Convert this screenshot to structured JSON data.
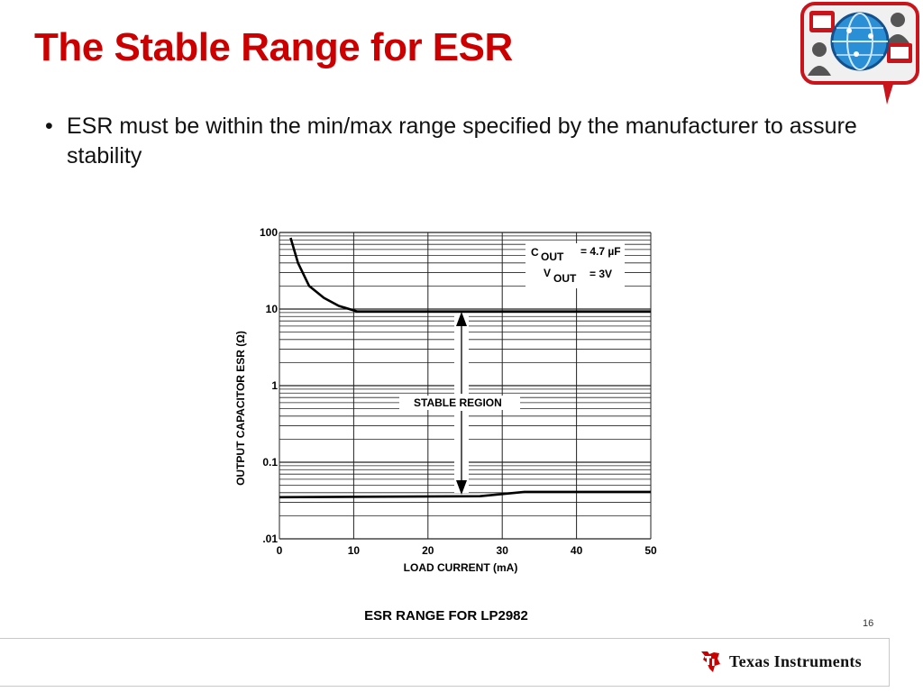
{
  "slide": {
    "title": "The Stable Range for ESR",
    "bullets": [
      "ESR must be within the min/max range specified by the manufacturer to assure stability"
    ],
    "caption": "ESR RANGE FOR LP2982",
    "page_number": "16",
    "brand": {
      "name_line": "Texas Instruments",
      "accent_color": "#cc0000"
    }
  },
  "chart_data": {
    "type": "line",
    "xlabel": "LOAD CURRENT (mA)",
    "ylabel": "OUTPUT CAPACITOR ESR (",
    "ylabel_symbol": "Ω)",
    "x_ticks": [
      "0",
      "10",
      "20",
      "30",
      "40",
      "50"
    ],
    "y_ticks": [
      "100",
      "10",
      "1",
      "0.1",
      ".01"
    ],
    "xlim": [
      0,
      50
    ],
    "ylim": [
      0.01,
      100
    ],
    "y_scale": "log",
    "grid": true,
    "conditions": [
      {
        "symbol": "C",
        "sub": "OUT",
        "value": "= 4.7 µF"
      },
      {
        "symbol": "V",
        "sub": "OUT",
        "value": "= 3V"
      }
    ],
    "region_label": "STABLE REGION",
    "series": [
      {
        "role": "max",
        "x": [
          1.5,
          2.5,
          4,
          6,
          8,
          10.5,
          50
        ],
        "y": [
          85,
          40,
          20,
          14,
          11,
          9.3,
          9.3
        ]
      },
      {
        "role": "min",
        "x": [
          0,
          27,
          33,
          50
        ],
        "y": [
          0.035,
          0.036,
          0.041,
          0.041
        ]
      }
    ]
  }
}
